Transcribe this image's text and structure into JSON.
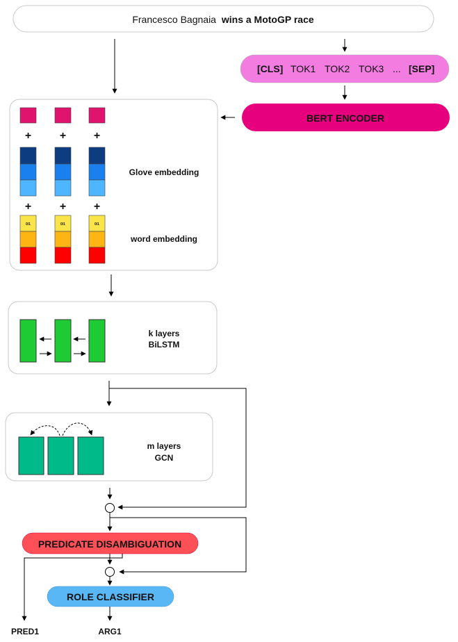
{
  "input_sentence": {
    "plain": "Francesco Bagnaia",
    "bold": "wins a MotoGP race"
  },
  "bert_tokens": {
    "cls": "[CLS]",
    "tok1": "TOK1",
    "tok2": "TOK2",
    "tok3": "TOK3",
    "ellipsis": "...",
    "sep": "[SEP]"
  },
  "bert_encoder": {
    "label": "BERT ENCODER"
  },
  "embeddings": {
    "plus": "+",
    "glove_label": "Glove embedding",
    "word_label": "word embedding",
    "flag_text": "0/1"
  },
  "bilstm": {
    "line1": "k layers",
    "line2": "BiLSTM"
  },
  "gcn": {
    "line1": "m layers",
    "line2": "GCN"
  },
  "predicate": {
    "label": "PREDICATE DISAMBIGUATION"
  },
  "role": {
    "label": "ROLE CLASSIFIER"
  },
  "outputs": {
    "pred": "PRED1",
    "arg": "ARG1"
  },
  "colors": {
    "bert_tokens_fill": "#f27ce0",
    "bert_encoder_fill": "#e6007e",
    "bert_top_square": "#e0136e",
    "glove_dark": "#0d3d80",
    "glove_mid": "#1a80ee",
    "glove_light": "#4db6ff",
    "flag_yellow": "#f9e44a",
    "word_orange": "#fdb514",
    "word_red": "#fe0000",
    "bilstm_green": "#1fcb35",
    "gcn_teal": "#00ba8a",
    "predicate_fill": "#ff4f57",
    "role_fill": "#5ab7f5"
  }
}
